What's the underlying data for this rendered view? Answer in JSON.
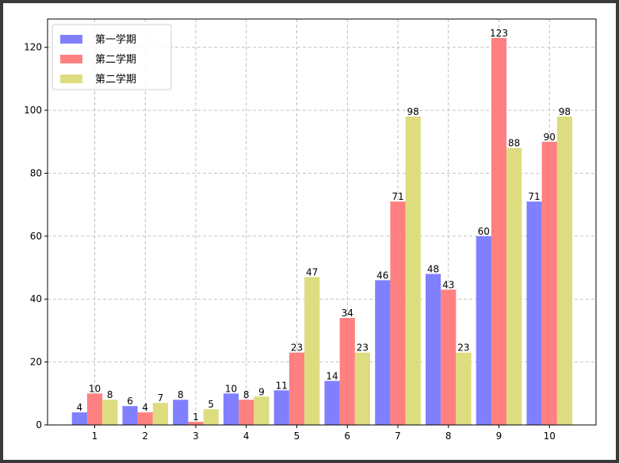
{
  "chart_data": {
    "type": "bar",
    "categories": [
      "1",
      "2",
      "3",
      "4",
      "5",
      "6",
      "7",
      "8",
      "9",
      "10"
    ],
    "series": [
      {
        "name": "第一学期",
        "color": "#8080ff",
        "values": [
          4,
          6,
          8,
          10,
          11,
          14,
          46,
          48,
          60,
          71
        ]
      },
      {
        "name": "第二学期",
        "color": "#ff8080",
        "values": [
          10,
          4,
          1,
          8,
          23,
          34,
          71,
          43,
          123,
          90
        ]
      },
      {
        "name": "第二学期",
        "color": "#dddd80",
        "values": [
          8,
          7,
          5,
          9,
          47,
          23,
          98,
          23,
          88,
          98
        ]
      }
    ],
    "ylim": [
      0,
      129
    ],
    "yticks": [
      0,
      20,
      40,
      60,
      80,
      100,
      120
    ],
    "grid": true,
    "legend_position": "top-left"
  }
}
